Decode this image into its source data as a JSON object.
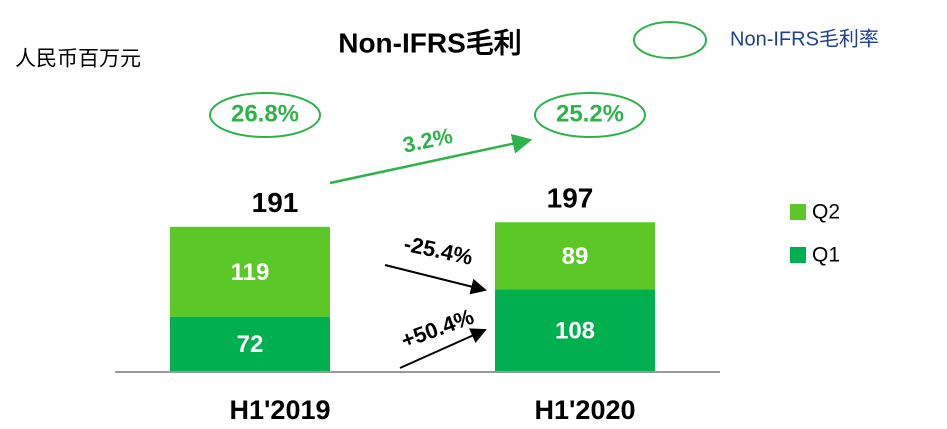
{
  "chart_data": {
    "type": "stacked_bar",
    "title": "Non-IFRS毛利",
    "unit_label": "人民币百万元",
    "categories": [
      "H1'2019",
      "H1'2020"
    ],
    "series": [
      {
        "name": "Q1",
        "color": "#00b050",
        "values": [
          72,
          108
        ]
      },
      {
        "name": "Q2",
        "color": "#5cc828",
        "values": [
          119,
          89
        ]
      }
    ],
    "totals": [
      191,
      197
    ],
    "margin_legend": "Non-IFRS毛利率",
    "margin_rates": {
      "values": [
        26.8,
        25.2
      ],
      "value_labels": [
        "26.8%",
        "25.2%"
      ]
    },
    "margin_change": {
      "value": 3.2,
      "label": "3.2%"
    },
    "growth": {
      "values": [
        -25.4,
        50.4
      ],
      "value_labels": [
        "-25.4%",
        "+50.4%"
      ]
    }
  }
}
